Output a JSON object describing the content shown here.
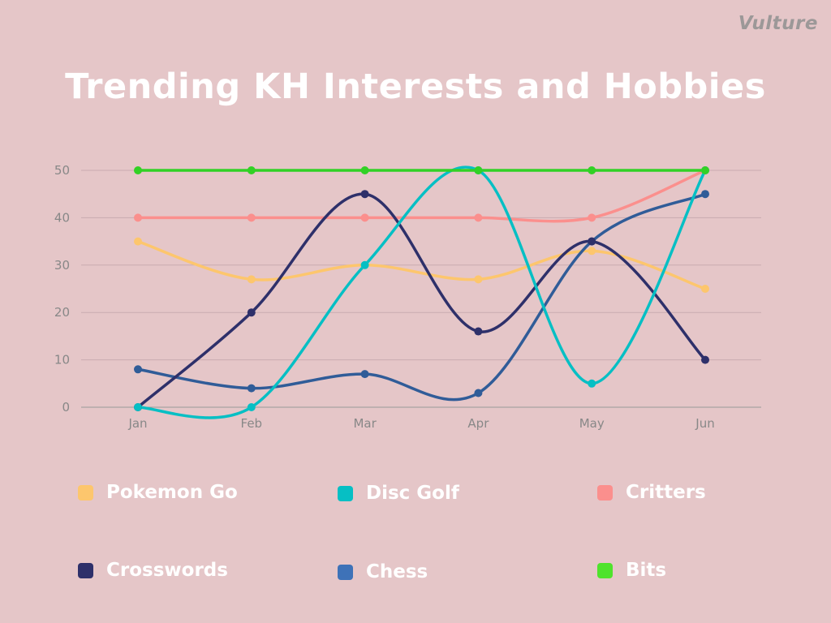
{
  "brand": "Vulture",
  "colors": {
    "background": "#e5c6c8",
    "gridline": "#c9abb0",
    "axis": "#999999",
    "text": "#ffffff"
  },
  "chart_data": {
    "type": "line",
    "title": "Trending KH Interests and Hobbies",
    "xlabel": "",
    "ylabel": "",
    "categories": [
      "Jan",
      "Feb",
      "Mar",
      "Apr",
      "May",
      "Jun"
    ],
    "ylim": [
      0,
      50
    ],
    "yticks": [
      0,
      10,
      20,
      30,
      40,
      50
    ],
    "grid": true,
    "legend_position": "bottom",
    "series": [
      {
        "name": "Pokemon Go",
        "color": "#fdc66d",
        "values": [
          35,
          27,
          30,
          27,
          33,
          25
        ]
      },
      {
        "name": "Critters",
        "color": "#fb8f8d",
        "values": [
          40,
          40,
          40,
          40,
          40,
          50
        ]
      },
      {
        "name": "Chess",
        "color": "#305c98",
        "values": [
          8,
          4,
          7,
          3,
          35,
          45
        ]
      },
      {
        "name": "Crosswords",
        "color": "#2e306a",
        "values": [
          0,
          20,
          45,
          16,
          35,
          10
        ]
      },
      {
        "name": "Disc Golf",
        "color": "#06bfc4",
        "values": [
          0,
          0,
          30,
          50,
          5,
          50
        ]
      },
      {
        "name": "Bits",
        "color": "#32d125",
        "values": [
          50,
          50,
          50,
          50,
          50,
          50
        ]
      }
    ]
  },
  "legend": [
    {
      "label": "Pokemon Go",
      "color": "#fdc66d"
    },
    {
      "label": "Disc Golf",
      "color": "#06bfc4"
    },
    {
      "label": "Critters",
      "color": "#fb8f8d"
    },
    {
      "label": "Crosswords",
      "color": "#2e306a"
    },
    {
      "label": "Chess",
      "color": "#3e72b8"
    },
    {
      "label": "Bits",
      "color": "#4fe32c"
    }
  ]
}
